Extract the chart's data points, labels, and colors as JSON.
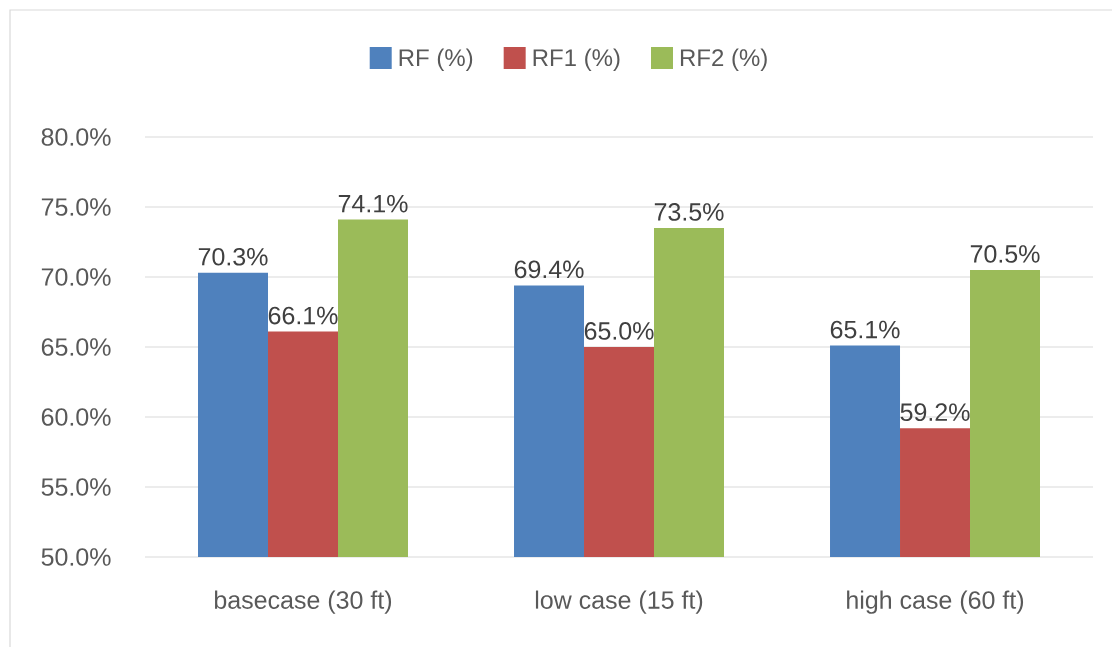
{
  "chart_data": {
    "type": "bar",
    "categories": [
      "basecase (30 ft)",
      "low case (15 ft)",
      "high case (60 ft)"
    ],
    "series": [
      {
        "name": "RF (%)",
        "color": "#4f81bd",
        "values": [
          70.3,
          69.4,
          65.1
        ],
        "value_labels": [
          "70.3%",
          "69.4%",
          "65.1%"
        ]
      },
      {
        "name": "RF1 (%)",
        "color": "#c0504d",
        "values": [
          66.1,
          65.0,
          59.2
        ],
        "value_labels": [
          "66.1%",
          "65.0%",
          "59.2%"
        ]
      },
      {
        "name": "RF2 (%)",
        "color": "#9bbb59",
        "values": [
          74.1,
          73.5,
          70.5
        ],
        "value_labels": [
          "74.1%",
          "73.5%",
          "70.5%"
        ]
      }
    ],
    "ylim": [
      50,
      80
    ],
    "yticks": [
      {
        "value": 50,
        "label": "50.0%"
      },
      {
        "value": 55,
        "label": "55.0%"
      },
      {
        "value": 60,
        "label": "60.0%"
      },
      {
        "value": 65,
        "label": "65.0%"
      },
      {
        "value": 70,
        "label": "70.0%"
      },
      {
        "value": 75,
        "label": "75.0%"
      },
      {
        "value": 80,
        "label": "80.0%"
      }
    ],
    "grid": "y",
    "legend": "top"
  }
}
